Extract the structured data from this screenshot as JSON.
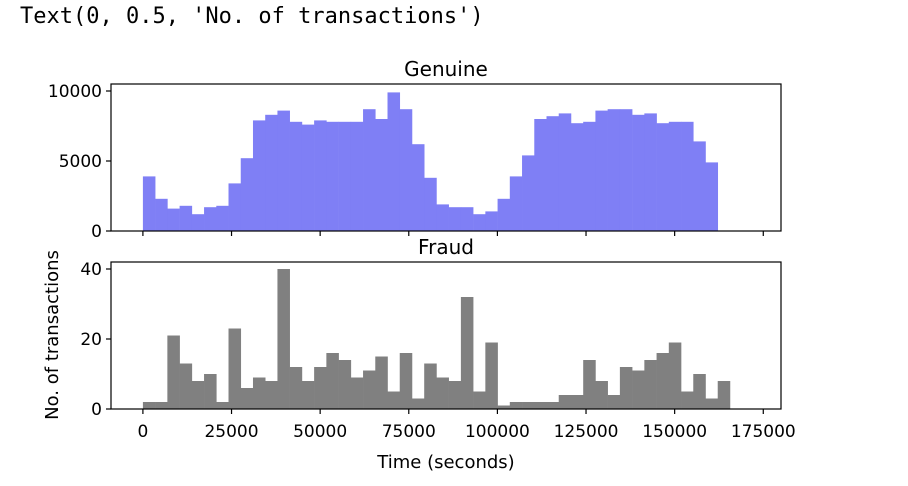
{
  "output_text": "Text(0, 0.5, 'No. of transactions')",
  "chart_data": [
    {
      "type": "bar",
      "title": "Genuine",
      "xlabel": "",
      "ylabel": "",
      "color": "#7f7ff5",
      "xlim": [
        -9000,
        180000
      ],
      "ylim": [
        0,
        10500
      ],
      "bin_start": 0,
      "bin_width": 3450,
      "values": [
        3900,
        2300,
        1600,
        1800,
        1200,
        1700,
        1800,
        3400,
        5200,
        7900,
        8300,
        8600,
        7800,
        7600,
        7900,
        7800,
        7800,
        7800,
        8700,
        8000,
        9900,
        8700,
        6200,
        3800,
        1900,
        1700,
        1700,
        1200,
        1400,
        2300,
        3900,
        5400,
        8000,
        8200,
        8400,
        7700,
        7800,
        8600,
        8700,
        8700,
        8300,
        8400,
        7700,
        7800,
        7800,
        6400,
        4900
      ],
      "yticks": [
        0,
        5000,
        10000
      ],
      "ytick_labels": [
        "0",
        "5000",
        "10000"
      ]
    },
    {
      "type": "bar",
      "title": "Fraud",
      "xlabel": "Time (seconds)",
      "ylabel": "No. of transactions",
      "color": "#808080",
      "xlim": [
        -9000,
        180000
      ],
      "ylim": [
        0,
        42
      ],
      "bin_start": 0,
      "bin_width": 3450,
      "values": [
        2,
        2,
        21,
        13,
        8,
        10,
        2,
        23,
        6,
        9,
        8,
        40,
        12,
        8,
        12,
        16,
        14,
        9,
        11,
        15,
        5,
        16,
        3,
        13,
        9,
        8,
        32,
        5,
        19,
        1,
        2,
        2,
        2,
        2,
        4,
        4,
        14,
        8,
        4,
        12,
        11,
        14,
        16,
        19,
        5,
        10,
        3,
        8
      ],
      "xticks": [
        0,
        25000,
        50000,
        75000,
        100000,
        125000,
        150000,
        175000
      ],
      "xtick_labels": [
        "0",
        "25000",
        "50000",
        "75000",
        "100000",
        "125000",
        "150000",
        "175000"
      ],
      "yticks": [
        0,
        20,
        40
      ],
      "ytick_labels": [
        "0",
        "20",
        "40"
      ]
    }
  ]
}
